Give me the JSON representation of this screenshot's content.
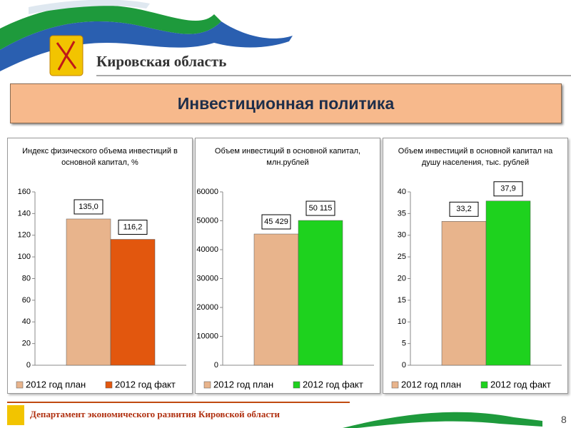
{
  "header": {
    "region": "Кировская область",
    "title": "Инвестиционная политика"
  },
  "footer": {
    "department": "Департамент экономического развития Кировской области",
    "page": 8
  },
  "chart_data": [
    {
      "type": "bar",
      "title": "Индекс физического объема инвестиций в основной капитал, %",
      "categories": [
        null
      ],
      "series": [
        {
          "name": "2012 год план",
          "color": "#e8b48c",
          "values": [
            135
          ],
          "value_labels": [
            "135,0"
          ]
        },
        {
          "name": "2012 год факт",
          "color": "#e2570e",
          "values": [
            116.2
          ],
          "value_labels": [
            "116,2"
          ]
        }
      ],
      "ylim": [
        0,
        160
      ],
      "yticks": [
        0,
        20,
        40,
        60,
        80,
        100,
        120,
        140,
        160
      ]
    },
    {
      "type": "bar",
      "title": "Объем инвестиций в основной капитал, млн.рублей",
      "categories": [
        null
      ],
      "series": [
        {
          "name": "2012 год план",
          "color": "#e8b48c",
          "values": [
            45429
          ],
          "value_labels": [
            "45 429"
          ]
        },
        {
          "name": "2012 год факт",
          "color": "#1ed21e",
          "values": [
            50115
          ],
          "value_labels": [
            "50 115"
          ]
        }
      ],
      "ylim": [
        0,
        60000
      ],
      "yticks": [
        0,
        10000,
        20000,
        30000,
        40000,
        50000,
        60000
      ]
    },
    {
      "type": "bar",
      "title": "Объем инвестиций в основной капитал на душу населения, тыс. рублей",
      "categories": [
        null
      ],
      "series": [
        {
          "name": "2012 год план",
          "color": "#e8b48c",
          "values": [
            33.2
          ],
          "value_labels": [
            "33,2"
          ]
        },
        {
          "name": "2012 год факт",
          "color": "#1ed21e",
          "values": [
            37.9
          ],
          "value_labels": [
            "37,9"
          ]
        }
      ],
      "ylim": [
        0,
        40
      ],
      "yticks": [
        0,
        5,
        10,
        15,
        20,
        25,
        30,
        35,
        40
      ]
    }
  ]
}
